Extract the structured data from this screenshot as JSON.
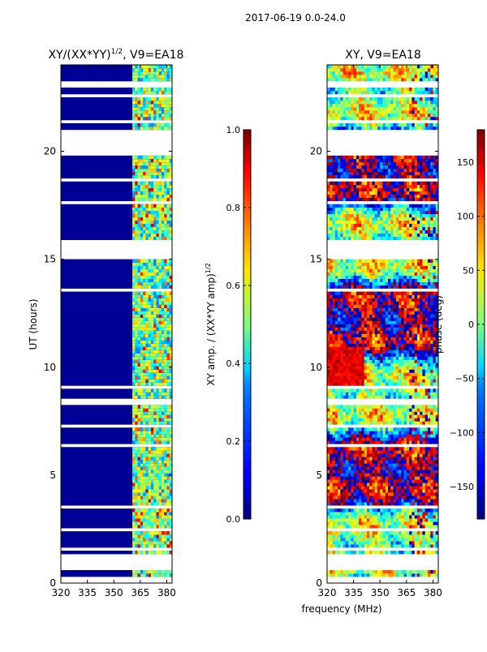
{
  "suptitle": "2017-06-19 0.0-24.0",
  "shared_xlabel": "frequency (MHz)",
  "chart_data": [
    {
      "type": "heatmap",
      "title_main": "XY/(XX*YY)",
      "title_sup": "1/2",
      "title_suffix": ", V9=EA18",
      "ylabel": "UT (hours)",
      "xlim": [
        320,
        383
      ],
      "ylim": [
        0,
        24
      ],
      "xticks": [
        "320",
        "335",
        "350",
        "365",
        "380"
      ],
      "xtick_values": [
        320,
        335,
        350,
        365,
        380
      ],
      "yticks": [
        "0",
        "5",
        "10",
        "15",
        "20"
      ],
      "ytick_values": [
        0,
        5,
        10,
        15,
        20
      ],
      "band_start_mhz": 360,
      "colormap": "jet",
      "background_value_fraction": 0.02,
      "colorbar": {
        "label_main": "XY amp. / (XX*YY amp)",
        "label_sup": "1/2",
        "range": [
          0.0,
          1.0
        ],
        "ticks": [
          "0.0",
          "0.2",
          "0.4",
          "0.6",
          "0.8",
          "1.0"
        ],
        "tick_values": [
          0.0,
          0.2,
          0.4,
          0.6,
          0.8,
          1.0
        ]
      }
    },
    {
      "type": "heatmap",
      "title": "XY, V9=EA18",
      "ylabel": "",
      "xlim": [
        320,
        383
      ],
      "ylim": [
        0,
        24
      ],
      "xticks": [
        "320",
        "335",
        "350",
        "365",
        "380"
      ],
      "xtick_values": [
        320,
        335,
        350,
        365,
        380
      ],
      "yticks": [
        "0",
        "5",
        "10",
        "15",
        "20"
      ],
      "ytick_values": [
        0,
        5,
        10,
        15,
        20
      ],
      "colormap": "jet",
      "colorbar": {
        "label": "phase (deg)",
        "range": [
          -180,
          180
        ],
        "ticks": [
          "−150",
          "−100",
          "−50",
          "0",
          "50",
          "100",
          "150"
        ],
        "tick_values": [
          -150,
          -100,
          -50,
          0,
          50,
          100,
          150
        ]
      }
    }
  ],
  "flagged_ut_hours": [
    [
      0.0,
      0.35
    ],
    [
      0.6,
      1.3
    ],
    [
      1.5,
      1.6
    ],
    [
      2.45,
      2.55
    ],
    [
      3.5,
      3.6
    ],
    [
      4.6,
      4.7
    ],
    [
      6.3,
      6.4
    ],
    [
      7.25,
      7.35
    ],
    [
      8.3,
      8.5
    ],
    [
      9.0,
      9.15
    ],
    [
      10.9,
      11.0
    ],
    [
      12.1,
      12.2
    ],
    [
      13.5,
      13.6
    ],
    [
      15.0,
      15.9
    ],
    [
      16.3,
      16.4
    ],
    [
      17.6,
      17.7
    ],
    [
      18.6,
      18.75
    ],
    [
      19.85,
      21.0
    ],
    [
      21.3,
      21.4
    ],
    [
      22.45,
      22.6
    ],
    [
      22.9,
      23.2
    ]
  ]
}
